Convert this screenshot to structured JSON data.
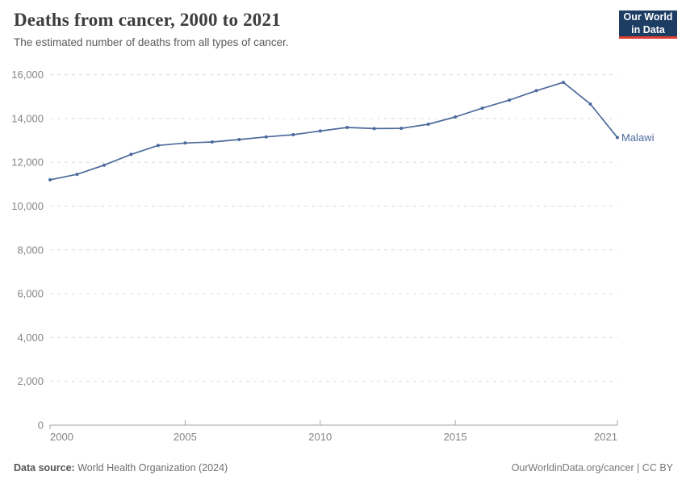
{
  "header": {
    "title": "Deaths from cancer, 2000 to 2021",
    "subtitle": "The estimated number of deaths from all types of cancer."
  },
  "logo": {
    "line1": "Our World",
    "line2": "in Data",
    "bg_color": "#1d3d63",
    "accent_color": "#dc3e32"
  },
  "chart_data": {
    "type": "line",
    "title": "Deaths from cancer, 2000 to 2021",
    "x": [
      2000,
      2001,
      2002,
      2003,
      2004,
      2005,
      2006,
      2007,
      2008,
      2009,
      2010,
      2011,
      2012,
      2013,
      2014,
      2015,
      2016,
      2017,
      2018,
      2019,
      2020,
      2021
    ],
    "series": [
      {
        "name": "Malawi",
        "color": "#4c6a9c",
        "values": [
          11200,
          11450,
          11870,
          12360,
          12770,
          12880,
          12930,
          13040,
          13160,
          13260,
          13430,
          13590,
          13540,
          13550,
          13740,
          14070,
          14470,
          14840,
          15270,
          15650,
          14660,
          13130
        ]
      }
    ],
    "xlabel": "",
    "ylabel": "",
    "ylim": [
      0,
      16000
    ],
    "yticks": [
      0,
      2000,
      4000,
      6000,
      8000,
      10000,
      12000,
      14000,
      16000
    ],
    "xticks": [
      2000,
      2005,
      2010,
      2015,
      2021
    ],
    "grid": "horizontal-dashed",
    "legend_position": "end-of-line-label",
    "tick_label_color": "#858585",
    "gridline_color": "#dcdcdc",
    "axis_color": "#a3a3a3"
  },
  "footer": {
    "source_label": "Data source:",
    "source_value": " World Health Organization (2024)",
    "link": "OurWorldinData.org/cancer | CC BY"
  }
}
